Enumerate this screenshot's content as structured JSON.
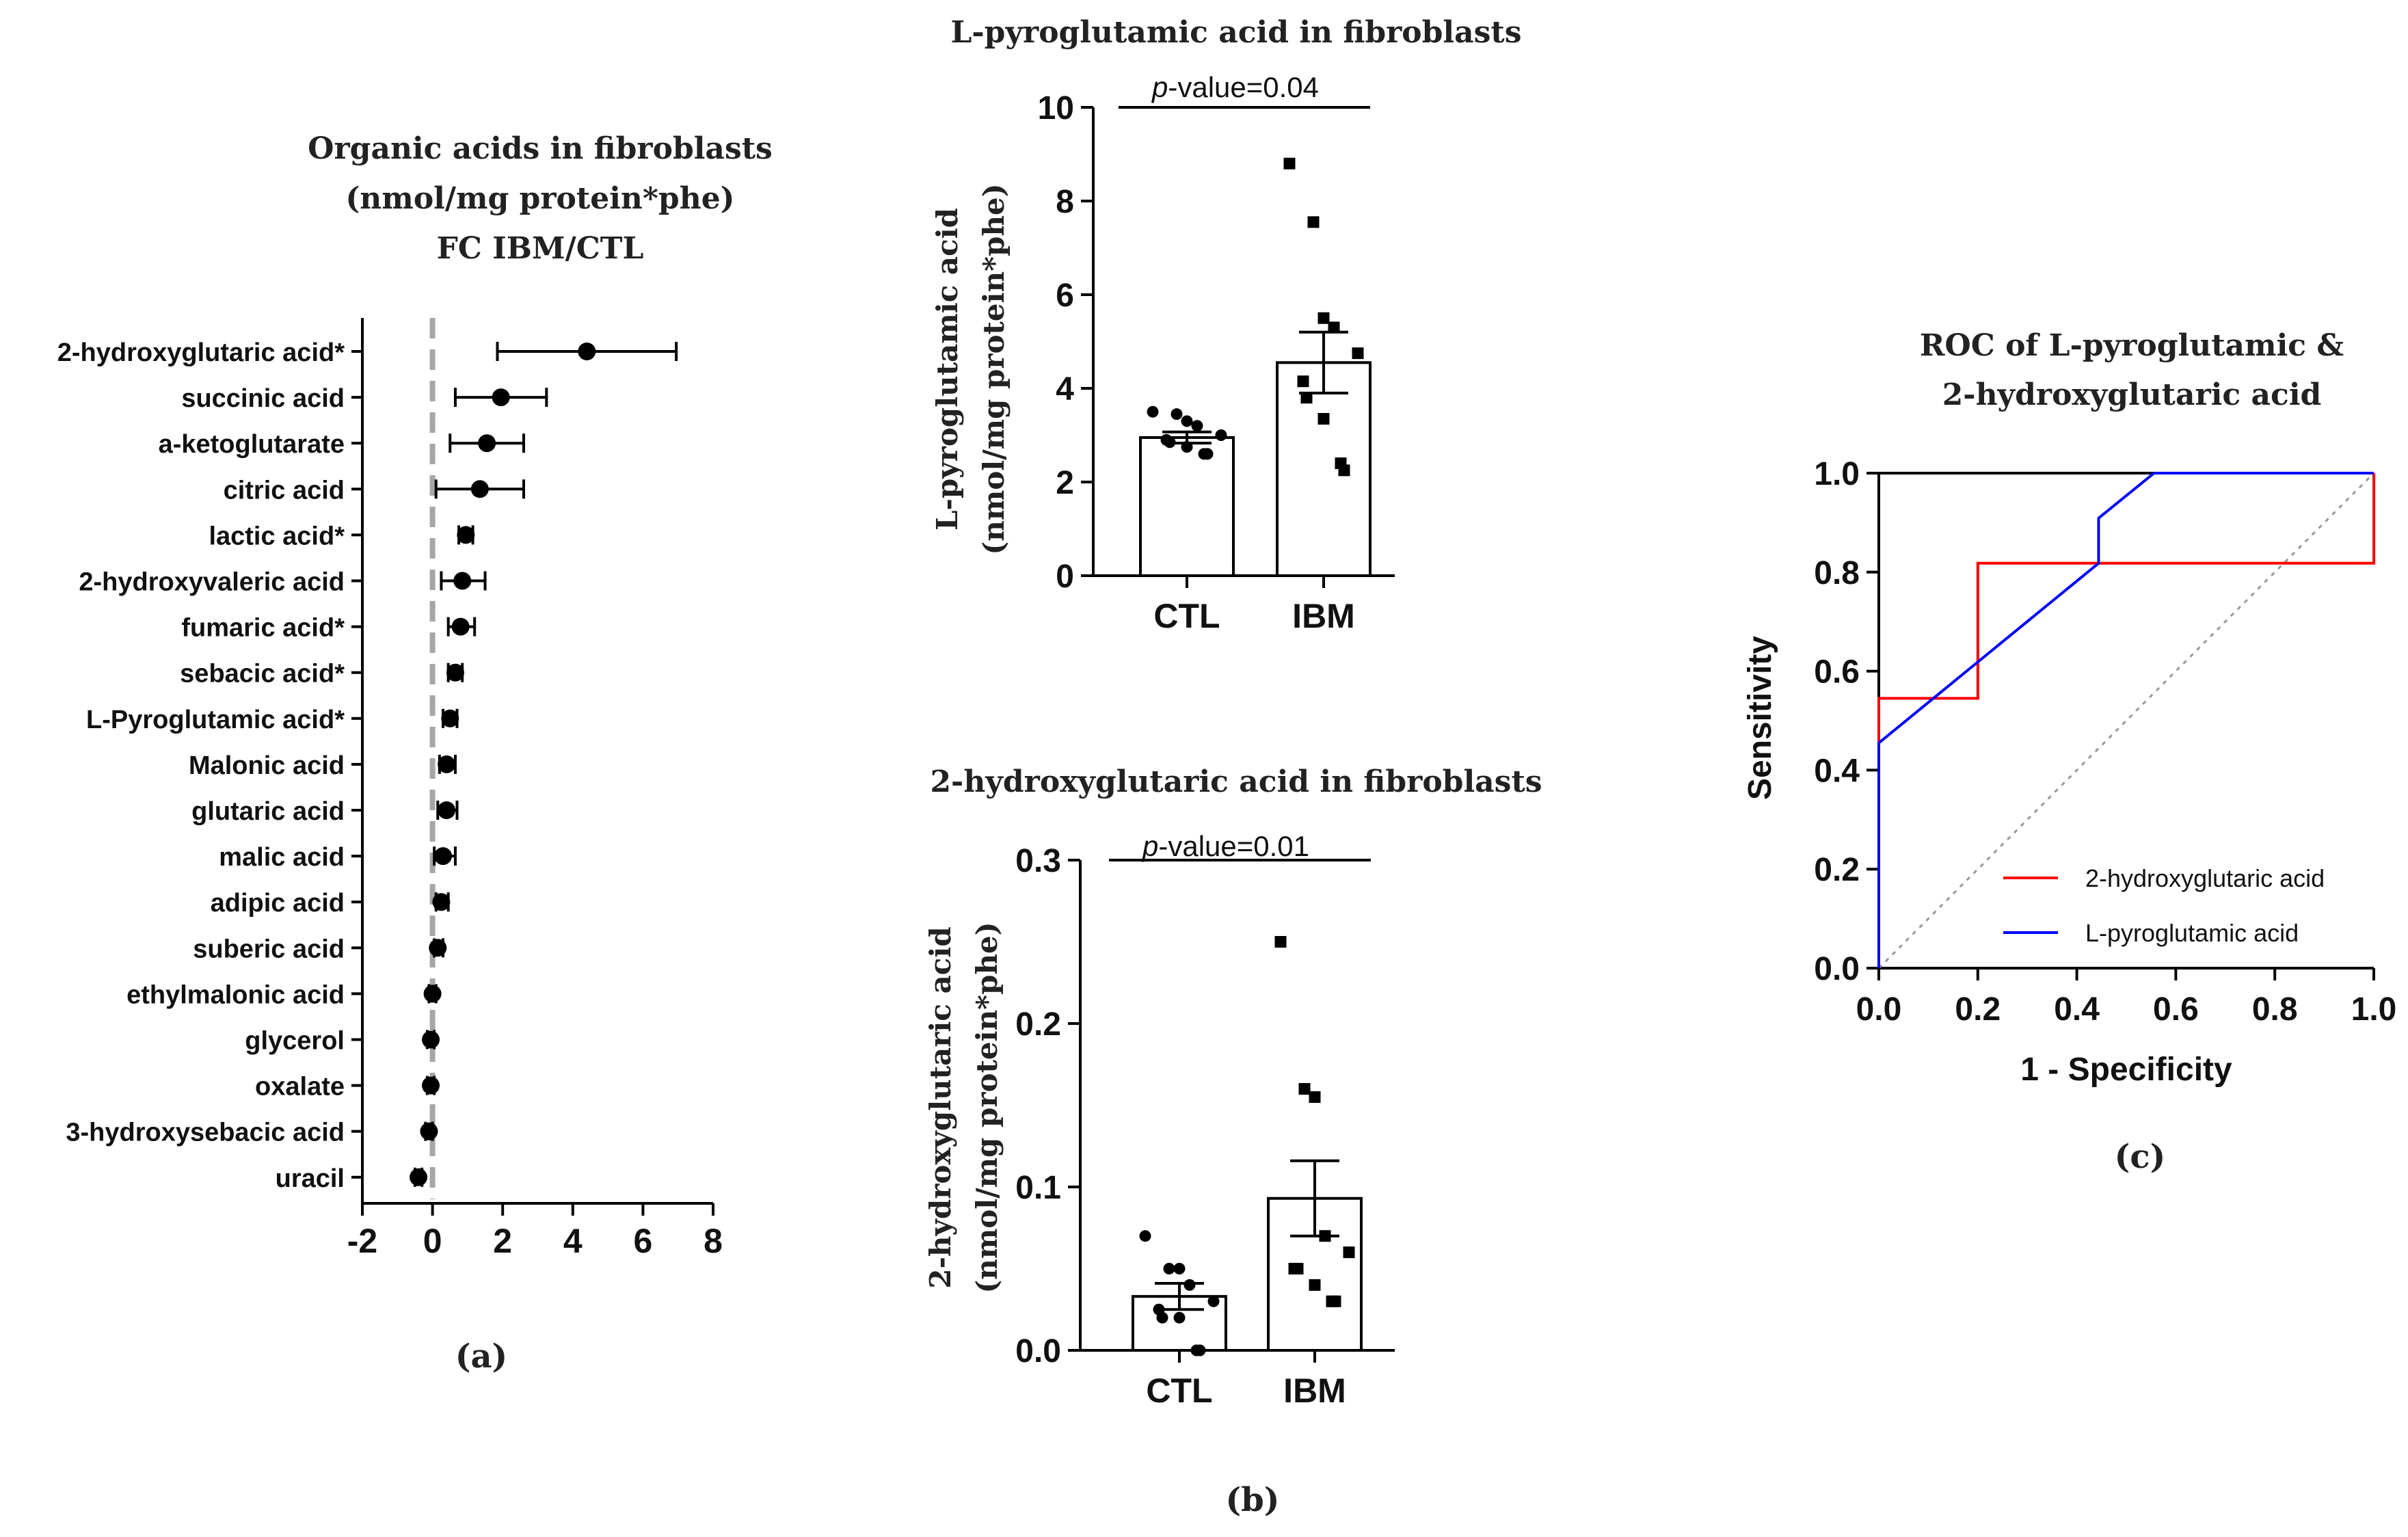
{
  "panel_labels": {
    "a": "(a)",
    "b": "(b)",
    "c": "(c)"
  },
  "chart_data": [
    {
      "id": "forest",
      "type": "scatter",
      "title": [
        "Organic acids in fibroblasts",
        "(nmol/mg protein*phe)",
        "FC IBM/CTL"
      ],
      "xlabel": "",
      "ylabel": "",
      "xlim": [
        -2,
        8
      ],
      "xticks": [
        -2,
        0,
        2,
        4,
        6,
        8
      ],
      "reference_line_x": 0,
      "categories": [
        "2-hydroxyglutaric acid*",
        "succinic acid",
        "a-ketoglutarate",
        "citric acid",
        "lactic acid*",
        "2-hydroxyvaleric acid",
        "fumaric acid*",
        "sebacic acid*",
        "L-Pyroglutamic acid*",
        "Malonic acid",
        "glutaric acid",
        "malic acid",
        "adipic acid",
        "suberic acid",
        "ethylmalonic acid",
        "glycerol",
        "oxalate",
        "3-hydroxysebacic acid",
        "uracil"
      ],
      "values": [
        4.4,
        1.95,
        1.55,
        1.35,
        0.95,
        0.85,
        0.8,
        0.65,
        0.5,
        0.4,
        0.4,
        0.3,
        0.25,
        0.15,
        0.0,
        -0.05,
        -0.05,
        -0.1,
        -0.4
      ],
      "err_low": [
        1.85,
        0.65,
        0.5,
        0.1,
        0.75,
        0.25,
        0.45,
        0.45,
        0.3,
        0.2,
        0.15,
        0.05,
        0.1,
        0.05,
        -0.1,
        -0.15,
        -0.15,
        -0.2,
        -0.5
      ],
      "err_high": [
        6.95,
        3.25,
        2.6,
        2.6,
        1.15,
        1.5,
        1.2,
        0.85,
        0.7,
        0.65,
        0.7,
        0.65,
        0.45,
        0.3,
        0.1,
        0.05,
        0.05,
        0.0,
        -0.3
      ]
    },
    {
      "id": "pyro",
      "type": "bar",
      "title": "L-pyroglutamic acid in fibroblasts",
      "ylabel": [
        "L-pyroglutamic acid",
        "(nmol/mg protein*phe)"
      ],
      "ylim": [
        0,
        10
      ],
      "yticks": [
        0,
        2,
        4,
        6,
        8,
        10
      ],
      "categories": [
        "CTL",
        "IBM"
      ],
      "values": [
        2.95,
        4.55
      ],
      "sem": [
        0.12,
        0.65
      ],
      "points": [
        [
          3.5,
          3.45,
          3.3,
          3.2,
          3.0,
          2.9,
          2.85,
          2.75,
          2.6,
          2.6
        ],
        [
          8.8,
          7.55,
          5.5,
          5.3,
          4.75,
          4.15,
          3.8,
          3.35,
          2.4,
          2.25
        ]
      ],
      "pvalue_prefix": "p",
      "pvalue_text": "-value=0.04"
    },
    {
      "id": "hydroxy",
      "type": "bar",
      "title": "2-hydroxyglutaric acid in fibroblasts",
      "ylabel": [
        "2-hydroxyglutaric acid",
        "(nmol/mg protein*phe)"
      ],
      "ylim": [
        0,
        0.3
      ],
      "yticks": [
        0.0,
        0.1,
        0.2,
        0.3
      ],
      "yticklabels": [
        "0.0",
        "0.1",
        "0.2",
        "0.3"
      ],
      "categories": [
        "CTL",
        "IBM"
      ],
      "values": [
        0.033,
        0.093
      ],
      "sem": [
        0.008,
        0.023
      ],
      "points": [
        [
          0.07,
          0.05,
          0.05,
          0.04,
          0.03,
          0.025,
          0.02,
          0.02,
          0.0,
          0.0
        ],
        [
          0.25,
          0.16,
          0.155,
          0.07,
          0.06,
          0.05,
          0.05,
          0.04,
          0.03,
          0.03
        ]
      ],
      "pvalue_prefix": "p",
      "pvalue_text": "-value=0.01"
    },
    {
      "id": "roc",
      "type": "line",
      "title": [
        "ROC of L-pyroglutamic &",
        "2-hydroxyglutaric acid"
      ],
      "xlabel": "1 - Specificity",
      "ylabel": "Sensitivity",
      "xlim": [
        0,
        1
      ],
      "ylim": [
        0,
        1
      ],
      "ticks": [
        0.0,
        0.2,
        0.4,
        0.6,
        0.8,
        1.0
      ],
      "ticklabels": [
        "0.0",
        "0.2",
        "0.4",
        "0.6",
        "0.8",
        "1.0"
      ],
      "series": [
        {
          "name": "2-hydroxyglutaric acid",
          "color": "#ff0000",
          "x": [
            0,
            0,
            0.2,
            0.2,
            1.0,
            1.0
          ],
          "y": [
            0,
            0.545,
            0.545,
            0.818,
            0.818,
            1.0
          ]
        },
        {
          "name": "L-pyroglutamic acid",
          "color": "#0000ff",
          "x": [
            0,
            0,
            0.444,
            0.444,
            0.556,
            1.0
          ],
          "y": [
            0,
            0.455,
            0.818,
            0.909,
            1.0,
            1.0
          ]
        }
      ],
      "reference": "diagonal"
    }
  ]
}
